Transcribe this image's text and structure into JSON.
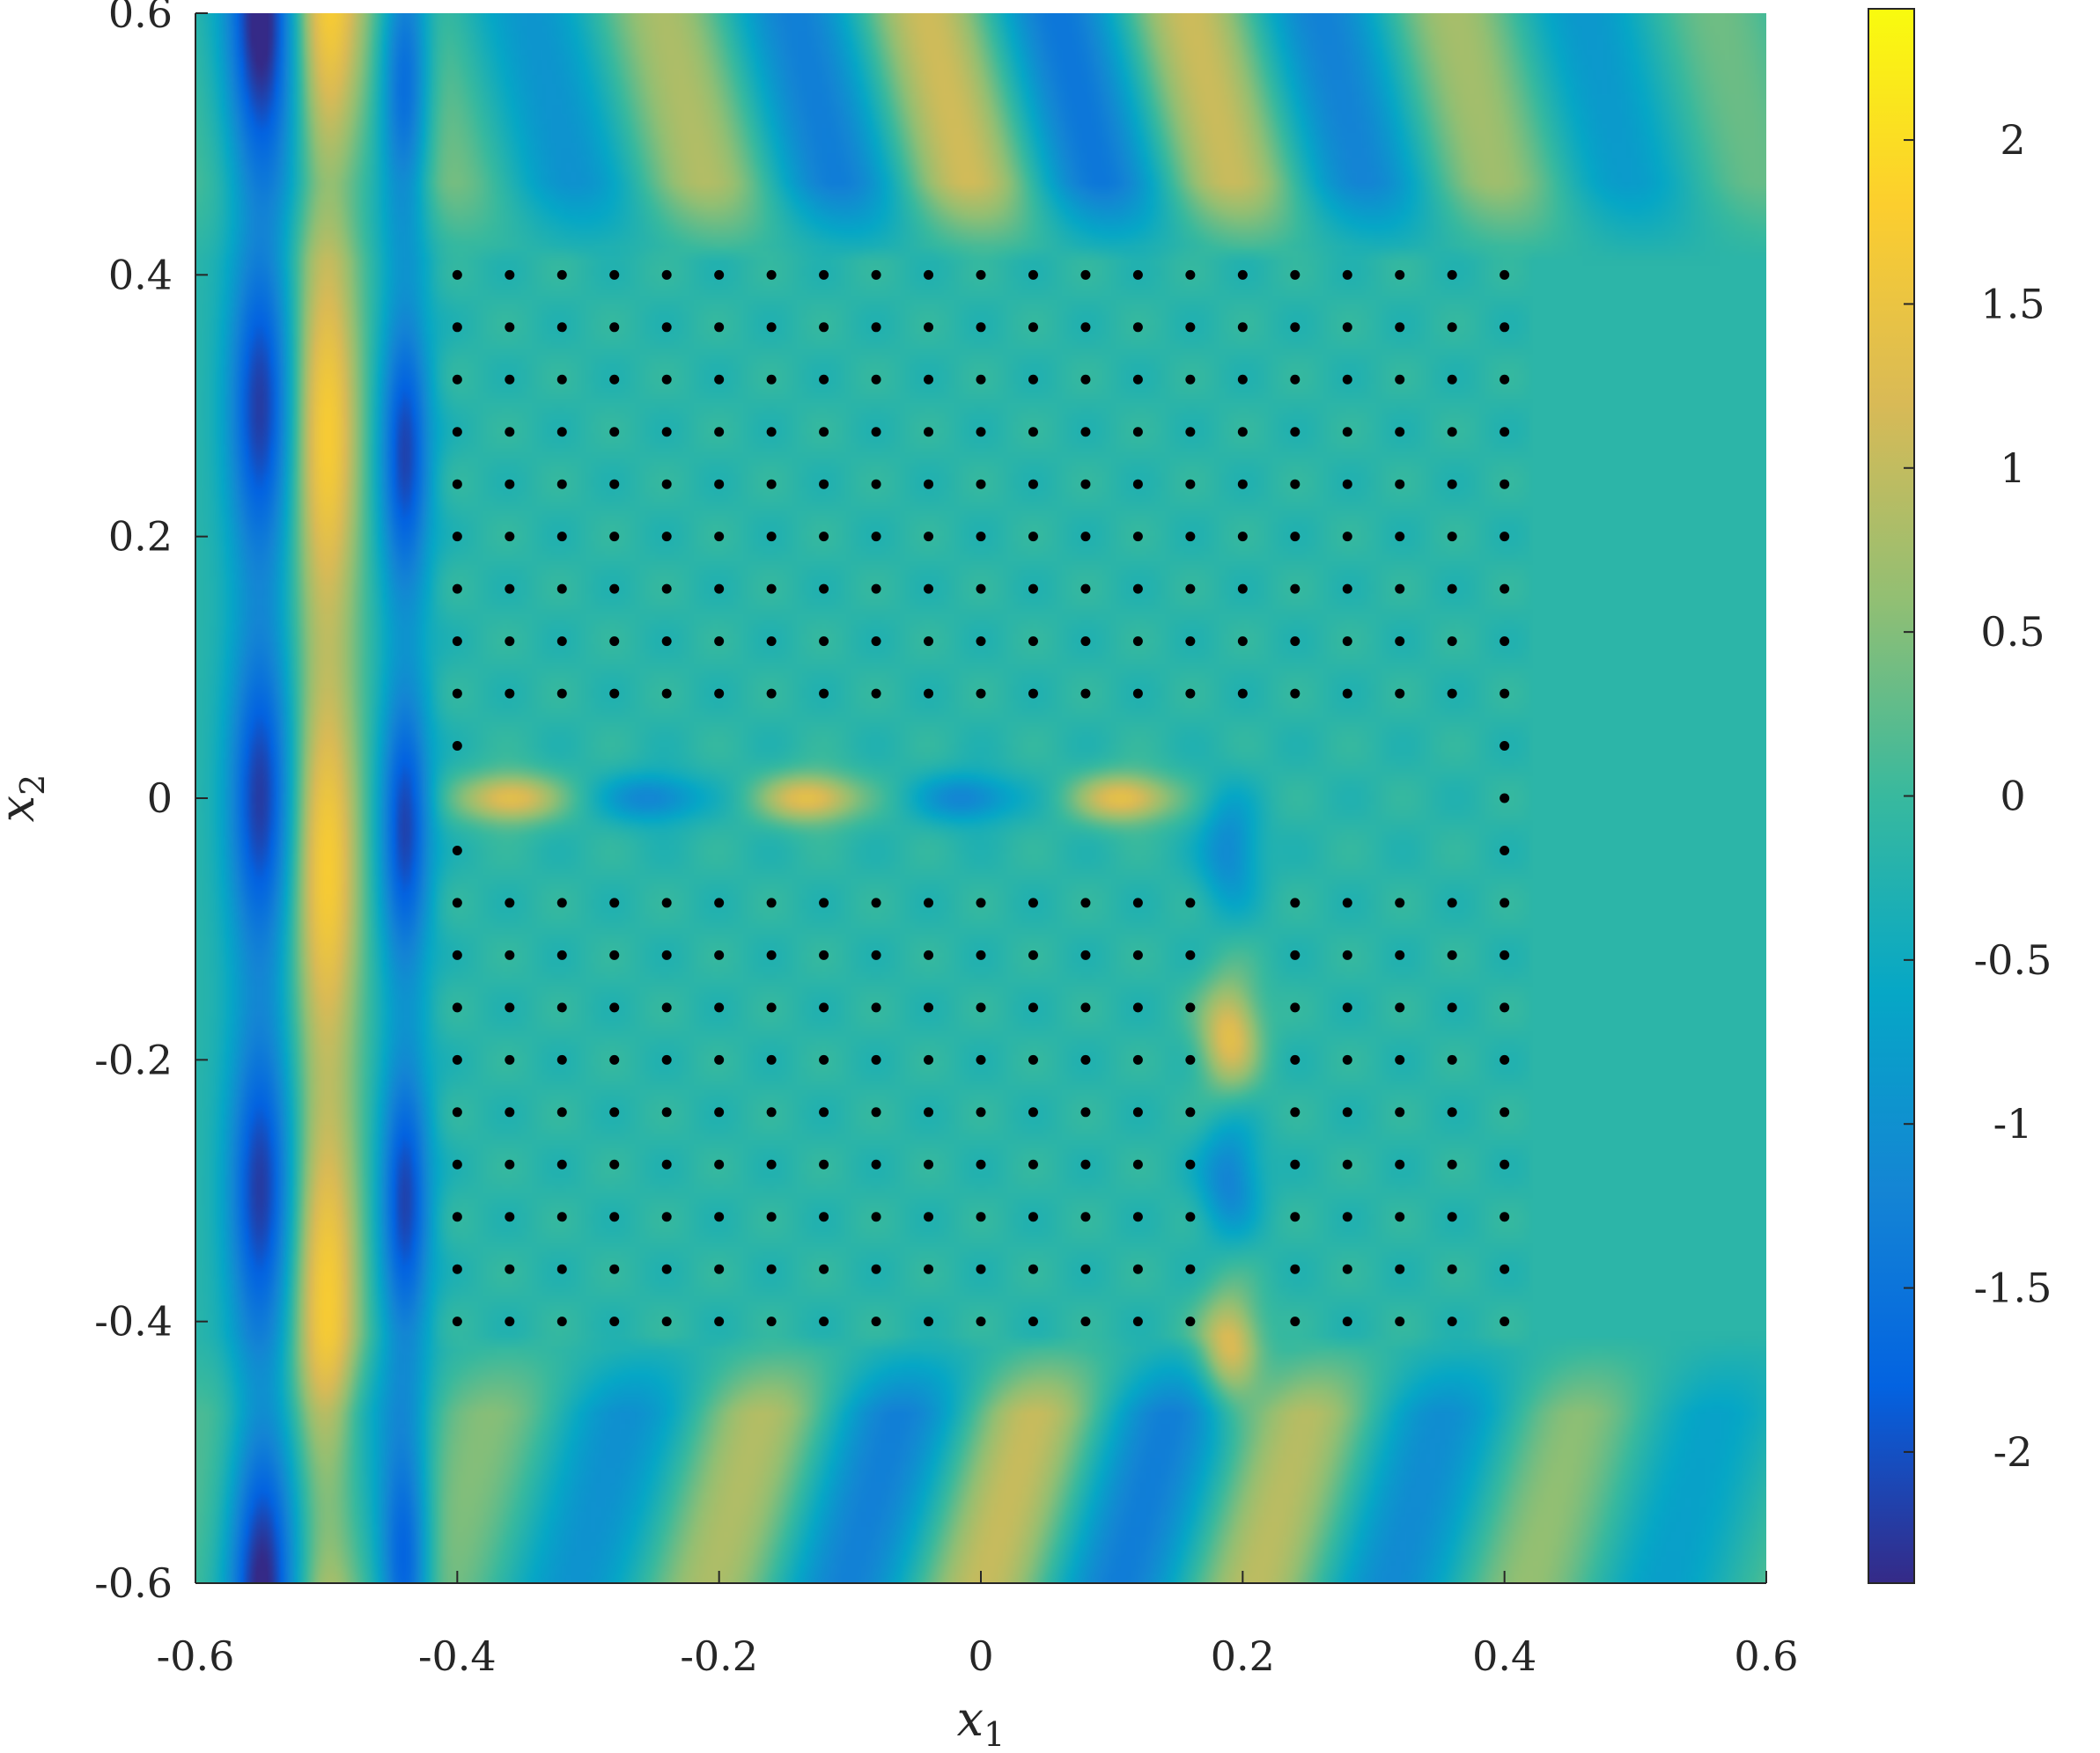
{
  "chart_data": {
    "type": "heatmap",
    "title": "",
    "xlabel": "x",
    "xlabel_subscript": "1",
    "ylabel": "x",
    "ylabel_subscript": "2",
    "xlim": [
      -0.6,
      0.6
    ],
    "ylim": [
      -0.6,
      0.6
    ],
    "x_ticks": [
      -0.6,
      -0.4,
      -0.2,
      0,
      0.2,
      0.4,
      0.6
    ],
    "x_tick_labels": [
      "-0.6",
      "-0.4",
      "-0.2",
      "0",
      "0.2",
      "0.4",
      "0.6"
    ],
    "y_ticks": [
      -0.6,
      -0.4,
      -0.2,
      0,
      0.2,
      0.4,
      0.6
    ],
    "y_tick_labels": [
      "-0.6",
      "-0.4",
      "-0.2",
      "0",
      "0.2",
      "0.4",
      "0.6"
    ],
    "colormap": "parula",
    "colormap_stops": [
      "#352a87",
      "#0363e1",
      "#1485d4",
      "#06a7c6",
      "#38b99e",
      "#92bf73",
      "#d9ba56",
      "#fcce2e",
      "#f9fb0e"
    ],
    "color_limits": [
      -2.4,
      2.4
    ],
    "colorbar_ticks": [
      2,
      1.5,
      1,
      0.5,
      0,
      -0.5,
      -1,
      -1.5,
      -2
    ],
    "colorbar_tick_labels": [
      "2",
      "1.5",
      "1",
      "0.5",
      "0",
      "-0.5",
      "-1",
      "-1.5",
      "-2"
    ],
    "grid": false,
    "scatterer_points": {
      "x_range": [
        -0.4,
        0.4
      ],
      "y_range": [
        -0.4,
        0.4
      ],
      "spacing": 0.04,
      "marker_color": "#000000",
      "missing_points_description": "rows y=-0.04..0.04 empty between x=-0.4..0.36 (waveguide channel); column x=0.2 empty for y<=0.04 (vertical channel); row y=0 empty up to x=0.2"
    },
    "field_features": [
      {
        "feature": "vertical standing band",
        "x": -0.55,
        "value": -2.2
      },
      {
        "feature": "vertical standing band",
        "x": -0.5,
        "value": 1.8
      },
      {
        "feature": "vertical standing band",
        "x": -0.44,
        "value": -2.0
      },
      {
        "feature": "horizontal guided lobes",
        "y": 0,
        "x": [
          -0.36,
          -0.25,
          -0.13,
          -0.01,
          0.11
        ],
        "values": [
          1.6,
          -1.1,
          1.6,
          -1.1,
          1.6
        ]
      },
      {
        "feature": "vertical guided lobes",
        "x": 0.19,
        "y": [
          -0.04,
          -0.18,
          -0.29,
          -0.42
        ],
        "values": [
          -1.0,
          1.5,
          -1.1,
          1.5
        ]
      }
    ]
  }
}
